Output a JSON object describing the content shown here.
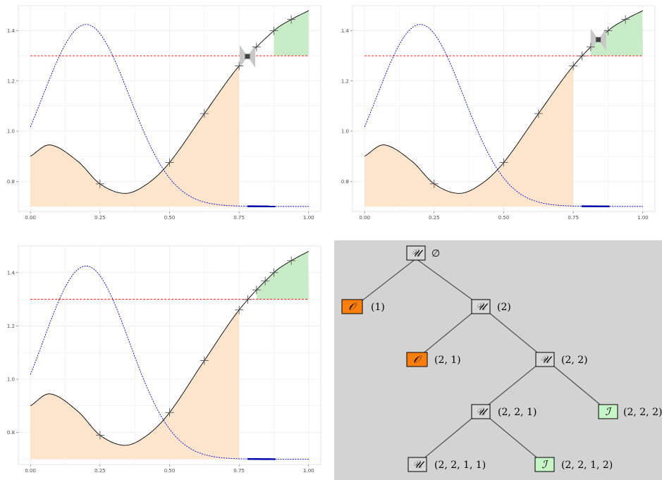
{
  "chart_data": [
    {
      "type": "line",
      "panel": "top-left",
      "xlim": [
        0,
        1
      ],
      "ylim": [
        0.7,
        1.5
      ],
      "x_ticks": [
        "0.00",
        "0.25",
        "0.50",
        "0.75",
        "1.00"
      ],
      "y_ticks": [
        "0.8",
        "1.0",
        "1.2",
        "1.4"
      ],
      "threshold": 1.3,
      "shaded_orange_x": [
        0.0,
        0.75
      ],
      "shaded_green_x": [
        0.875,
        1.0
      ],
      "markers_x": [
        0.25,
        0.5,
        0.625,
        0.75,
        0.8125,
        0.875,
        0.9375
      ],
      "highlight_x": 0.78,
      "grid": true
    },
    {
      "type": "line",
      "panel": "top-right",
      "xlim": [
        0,
        1
      ],
      "ylim": [
        0.7,
        1.5
      ],
      "x_ticks": [
        "0.00",
        "0.25",
        "0.50",
        "0.75",
        "1.00"
      ],
      "y_ticks": [
        "0.8",
        "1.0",
        "1.2",
        "1.4"
      ],
      "threshold": 1.3,
      "shaded_orange_x": [
        0.0,
        0.75
      ],
      "shaded_green_x": [
        0.8125,
        1.0
      ],
      "markers_x": [
        0.25,
        0.5,
        0.625,
        0.75,
        0.78125,
        0.8125,
        0.875,
        0.9375
      ],
      "highlight_x": 0.84,
      "grid": true
    },
    {
      "type": "line",
      "panel": "bottom-left",
      "xlim": [
        0,
        1
      ],
      "ylim": [
        0.7,
        1.5
      ],
      "x_ticks": [
        "0.00",
        "0.25",
        "0.50",
        "0.75",
        "1.00"
      ],
      "y_ticks": [
        "0.8",
        "1.0",
        "1.2",
        "1.4"
      ],
      "threshold": 1.3,
      "shaded_orange_x": [
        0.0,
        0.75
      ],
      "shaded_green_x": [
        0.8125,
        1.0
      ],
      "markers_x": [
        0.25,
        0.5,
        0.625,
        0.75,
        0.78125,
        0.8125,
        0.84375,
        0.875,
        0.9375
      ],
      "highlight_x": null,
      "grid": true
    }
  ],
  "colors": {
    "curve": "#000000",
    "density": "#0000cc",
    "threshold": "#ff0000",
    "orange_fill": "#fde4cc",
    "green_fill": "#c8ecc8",
    "orange_node": "#ff7f0e",
    "green_node": "#c8f5c8",
    "unknown_node": "#d9d9d9",
    "tree_bg": "#d3d3d3"
  },
  "tree": {
    "nodes": [
      {
        "id": "root",
        "symbol": "𝒰",
        "label": "∅",
        "color": "unknown"
      },
      {
        "id": "n1",
        "symbol": "𝒪",
        "label": "(1)",
        "color": "orange"
      },
      {
        "id": "n2",
        "symbol": "𝒰",
        "label": "(2)",
        "color": "unknown"
      },
      {
        "id": "n21",
        "symbol": "𝒪",
        "label": "(2, 1)",
        "color": "orange"
      },
      {
        "id": "n22",
        "symbol": "𝒰",
        "label": "(2, 2)",
        "color": "unknown"
      },
      {
        "id": "n221",
        "symbol": "𝒰",
        "label": "(2, 2, 1)",
        "color": "unknown"
      },
      {
        "id": "n222",
        "symbol": "ℐ",
        "label": "(2, 2, 2)",
        "color": "green"
      },
      {
        "id": "n2211",
        "symbol": "𝒰",
        "label": "(2, 2, 1, 1)",
        "color": "unknown"
      },
      {
        "id": "n2212",
        "symbol": "ℐ",
        "label": "(2, 2, 1, 2)",
        "color": "green"
      }
    ]
  }
}
